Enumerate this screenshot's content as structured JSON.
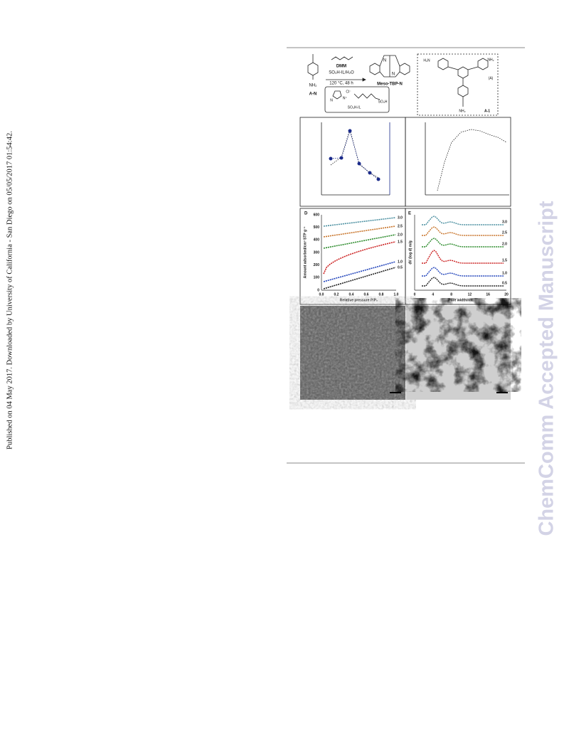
{
  "sidebar": "Published on 04 May 2017. Downloaded by University of California - San Diego on 05/05/2017 01:54:42.",
  "watermark": "ChemComm Accepted Manuscript",
  "figure": {
    "scheme": {
      "reactant_label": "A-N",
      "reactant_group": "NH₂",
      "reagent": "DMM",
      "conditions_1": "SO₃H-IL/H₂O",
      "conditions_2": "120 °C, 48 h",
      "product": "Meso-TBP-N",
      "product_n_top": "N",
      "product_n_bottom": "N",
      "catalyst_anion": "Cl⁻",
      "catalyst_cation": "N⁺",
      "catalyst_n": "N",
      "catalyst_group": "SO₃H",
      "catalyst_label": "SO₃H-IL",
      "monomer_tag": "(A)",
      "monomer_label": "A-1",
      "monomer_group_left": "H₂N",
      "monomer_group_right": "NH₂",
      "monomer_group_bottom": "NH₂"
    },
    "panel_d": {
      "label": "D",
      "y_label": "Amount adsorbed/cm³ STP g⁻¹",
      "x_label": "Relative pressure P/P₀",
      "y_ticks": [
        "0",
        "100",
        "200",
        "300",
        "400",
        "500",
        "600"
      ],
      "x_ticks": [
        "0.0",
        "0.2",
        "0.4",
        "0.6",
        "0.8",
        "1.0"
      ],
      "series_labels": [
        "3.0",
        "2.5",
        "2.0",
        "1.5",
        "1.0",
        "0.5"
      ]
    },
    "panel_e": {
      "label": "E",
      "y_label": "dV (log d) m/g",
      "x_label": "Pore width/nm",
      "x_ticks": [
        "0",
        "4",
        "8",
        "12",
        "16",
        "20"
      ],
      "series_labels": [
        "3.0",
        "2.5",
        "2.0",
        "1.5",
        "1.0",
        "0.5"
      ]
    }
  }
}
